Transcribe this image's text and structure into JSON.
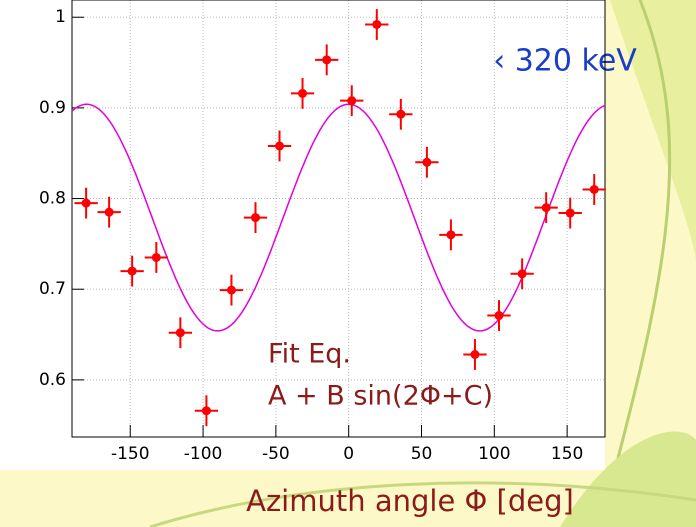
{
  "chart_data": {
    "type": "scatter",
    "annotation": "‹ 320 keV",
    "fit_label": "Fit Eq.",
    "fit_formula": "A + B sin(2Φ+C)",
    "x_label": "Azimuth angle Φ [deg]",
    "xlim": [
      -190,
      176
    ],
    "ylim": [
      0.537,
      1.019
    ],
    "xticks": [
      -150,
      -100,
      -50,
      0,
      50,
      100,
      150
    ],
    "yticks": [
      0.6,
      0.7,
      0.8,
      0.9,
      1
    ],
    "grid": true,
    "series": [
      {
        "color": "#ff0000",
        "x": [
          -180.3,
          -164.5,
          -148.7,
          -132.1,
          -115.6,
          -97.7,
          -80.5,
          -64,
          -47.5,
          -31.7,
          -15.1,
          2.1,
          19.3,
          35.8,
          53.7,
          70.2,
          86.7,
          103.2,
          119.1,
          135.6,
          152.1,
          168.6
        ],
        "values": [
          0.795,
          0.785,
          0.72,
          0.735,
          0.652,
          0.566,
          0.699,
          0.779,
          0.858,
          0.916,
          0.953,
          0.908,
          0.992,
          0.893,
          0.84,
          0.76,
          0.628,
          0.671,
          0.717,
          0.79,
          0.784,
          0.81
        ],
        "xerr": 8,
        "yerr": 0.017
      }
    ],
    "fit": {
      "A": 0.779,
      "B": 0.125,
      "C": 90,
      "color": "#e000e0"
    }
  }
}
